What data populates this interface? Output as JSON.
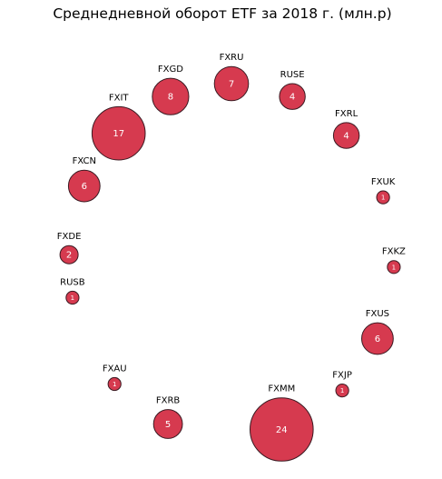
{
  "chart_data": {
    "type": "bubble",
    "title": "Среднедневной оборот ETF за 2018 г. (млн.р)",
    "xlabel": "",
    "ylabel": "",
    "grid": false,
    "legend": "none",
    "colors": {
      "fill": "#d63a4f",
      "stroke": "#3a1a22",
      "value_text": "#ffffff"
    },
    "series": [
      {
        "categories": [
          "FXDE",
          "FXCN",
          "FXIT",
          "FXGD",
          "FXRU",
          "RUSE",
          "FXRL",
          "FXUK",
          "FXKZ",
          "FXUS",
          "FXJP",
          "FXMM",
          "FXRB",
          "FXAU",
          "RUSB"
        ],
        "values": [
          2,
          6,
          17,
          8,
          7,
          4,
          4,
          1,
          1,
          6,
          1,
          24,
          5,
          1,
          1
        ]
      }
    ]
  }
}
